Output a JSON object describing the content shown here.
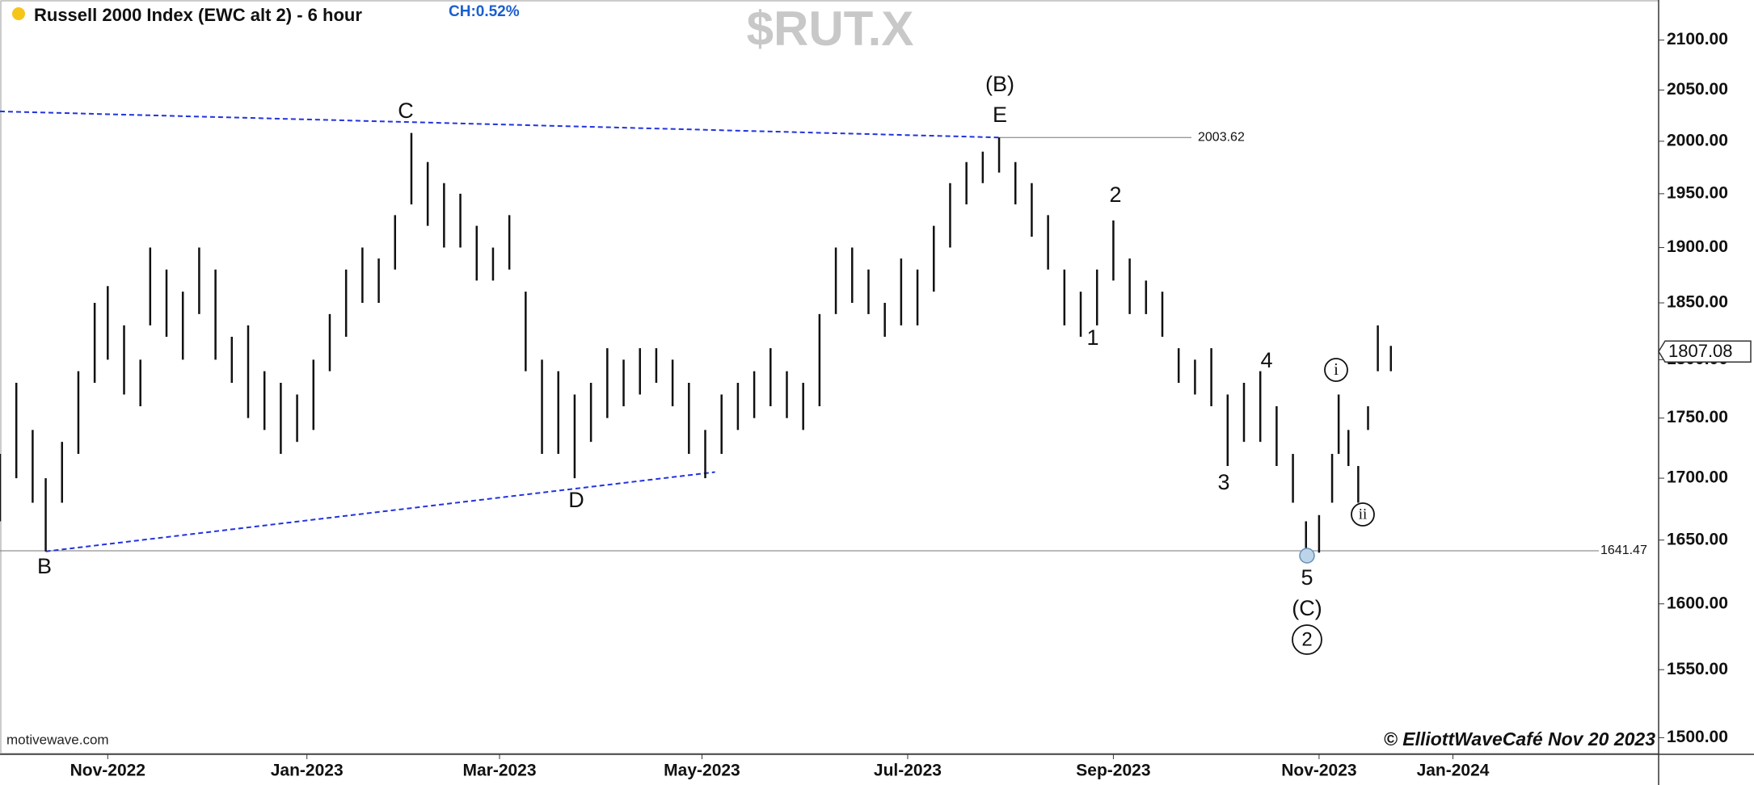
{
  "chart_data": {
    "type": "hl_bars",
    "title": "Russell 2000 Index (EWC alt 2) - 6 hour",
    "change_label": "CH:0.52%",
    "symbol": "$RUT.X",
    "source": "motivewave.com",
    "copyright": "© ElliottWaveCafé Nov 20 2023",
    "log_scale": true,
    "grid": false,
    "color": "#111111",
    "xlim": [
      0,
      508
    ],
    "ylim": [
      1488,
      2141
    ],
    "xticks": [
      {
        "value": 33,
        "label": "Nov-2022"
      },
      {
        "value": 94,
        "label": "Jan-2023"
      },
      {
        "value": 153,
        "label": "Mar-2023"
      },
      {
        "value": 215,
        "label": "May-2023"
      },
      {
        "value": 278,
        "label": "Jul-2023"
      },
      {
        "value": 341,
        "label": "Sep-2023"
      },
      {
        "value": 404,
        "label": "Nov-2023"
      },
      {
        "value": 445,
        "label": "Jan-2024"
      }
    ],
    "yticks": [
      {
        "value": 1500,
        "label": "1500.00"
      },
      {
        "value": 1550,
        "label": "1550.00"
      },
      {
        "value": 1600,
        "label": "1600.00"
      },
      {
        "value": 1650,
        "label": "1650.00"
      },
      {
        "value": 1700,
        "label": "1700.00"
      },
      {
        "value": 1750,
        "label": "1750.00"
      },
      {
        "value": 1800,
        "label": "1800.00"
      },
      {
        "value": 1850,
        "label": "1850.00"
      },
      {
        "value": 1900,
        "label": "1900.00"
      },
      {
        "value": 1950,
        "label": "1950.00"
      },
      {
        "value": 2000,
        "label": "2000.00"
      },
      {
        "value": 2050,
        "label": "2050.00"
      },
      {
        "value": 2100,
        "label": "2100.00"
      }
    ],
    "x": [
      0,
      5,
      10,
      14,
      19,
      24,
      29,
      33,
      38,
      43,
      46,
      51,
      56,
      61,
      66,
      71,
      76,
      81,
      86,
      91,
      96,
      101,
      106,
      111,
      116,
      121,
      126,
      131,
      136,
      141,
      146,
      151,
      156,
      161,
      166,
      171,
      176,
      181,
      186,
      191,
      196,
      201,
      206,
      211,
      216,
      221,
      226,
      231,
      236,
      241,
      246,
      251,
      256,
      261,
      266,
      271,
      276,
      281,
      286,
      291,
      296,
      301,
      306,
      311,
      316,
      321,
      326,
      331,
      336,
      341,
      346,
      351,
      356,
      361,
      366,
      371,
      376,
      381,
      386,
      391,
      396,
      400,
      404,
      408,
      410,
      413,
      416,
      419,
      422,
      426
    ],
    "high": [
      1720,
      1780,
      1740,
      1700,
      1730,
      1790,
      1850,
      1865,
      1830,
      1800,
      1900,
      1880,
      1860,
      1900,
      1880,
      1820,
      1830,
      1790,
      1780,
      1770,
      1800,
      1840,
      1880,
      1900,
      1890,
      1930,
      2008,
      1980,
      1960,
      1950,
      1920,
      1900,
      1930,
      1860,
      1800,
      1790,
      1770,
      1780,
      1810,
      1800,
      1810,
      1810,
      1800,
      1780,
      1740,
      1770,
      1780,
      1790,
      1810,
      1790,
      1780,
      1840,
      1900,
      1900,
      1880,
      1850,
      1890,
      1880,
      1920,
      1960,
      1980,
      1990,
      2003.62,
      1980,
      1960,
      1930,
      1880,
      1860,
      1880,
      1925,
      1890,
      1870,
      1860,
      1810,
      1800,
      1810,
      1770,
      1780,
      1790,
      1760,
      1720,
      1665,
      1670,
      1720,
      1770,
      1740,
      1710,
      1760,
      1830,
      1812
    ],
    "low": [
      1665,
      1700,
      1680,
      1641,
      1680,
      1720,
      1780,
      1800,
      1770,
      1760,
      1830,
      1820,
      1800,
      1840,
      1800,
      1780,
      1750,
      1740,
      1720,
      1730,
      1740,
      1790,
      1820,
      1850,
      1850,
      1880,
      1940,
      1920,
      1900,
      1900,
      1870,
      1870,
      1880,
      1790,
      1720,
      1720,
      1700,
      1730,
      1750,
      1760,
      1770,
      1780,
      1760,
      1720,
      1700,
      1720,
      1740,
      1750,
      1760,
      1750,
      1740,
      1760,
      1840,
      1850,
      1840,
      1820,
      1830,
      1830,
      1860,
      1900,
      1940,
      1960,
      1970,
      1940,
      1910,
      1880,
      1830,
      1820,
      1830,
      1870,
      1840,
      1840,
      1820,
      1780,
      1770,
      1760,
      1710,
      1730,
      1730,
      1710,
      1680,
      1636,
      1640,
      1680,
      1720,
      1710,
      1680,
      1740,
      1790,
      1790
    ],
    "last_price": 1807.08,
    "levels": [
      2003.62,
      1641.47
    ],
    "trendlines": [
      {
        "x": [
          0,
          306
        ],
        "y": [
          2029,
          2003.62
        ],
        "color": "#2233dd"
      },
      {
        "x": [
          14,
          219
        ],
        "y": [
          1641,
          1705
        ],
        "color": "#2233dd"
      }
    ],
    "annotations": [
      "C",
      "(B)",
      "E",
      "B",
      "D",
      "1",
      "2",
      "3",
      "4",
      "5",
      "(C)",
      "2",
      "i",
      "ii"
    ]
  }
}
